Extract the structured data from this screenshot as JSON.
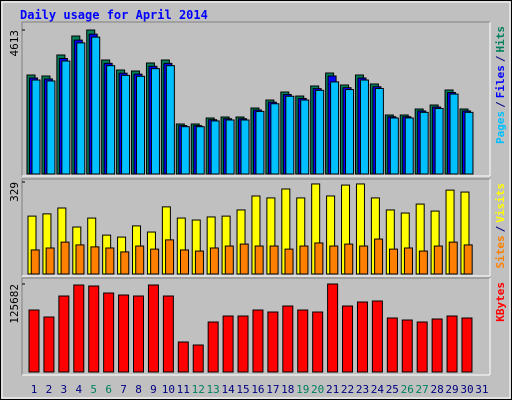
{
  "chart_data": [
    {
      "type": "bar",
      "title": "Daily usage for April 2014",
      "ylim": [
        0,
        4613
      ],
      "yticks": [
        4613
      ],
      "series": [
        {
          "name": "Hits",
          "color": "#00805c",
          "values": [
            3171,
            3139,
            3812,
            4420,
            4613,
            3652,
            3331,
            3299,
            3556,
            3652,
            1602,
            1602,
            1794,
            1826,
            1826,
            2114,
            2370,
            2626,
            2498,
            2819,
            3235,
            2851,
            3171,
            2883,
            1890,
            1890,
            2082,
            2210,
            2691,
            2082,
            null
          ]
        },
        {
          "name": "Files",
          "color": "#0000ff",
          "values": [
            3075,
            3045,
            3700,
            4290,
            4480,
            3545,
            3230,
            3200,
            3450,
            3545,
            1550,
            1550,
            1740,
            1770,
            1770,
            2050,
            2300,
            2545,
            2420,
            2735,
            3140,
            2765,
            3075,
            2795,
            1835,
            1835,
            2020,
            2145,
            2610,
            2020,
            null
          ]
        },
        {
          "name": "Pages",
          "color": "#00c0ff",
          "values": [
            3010,
            2980,
            3620,
            4200,
            4385,
            3470,
            3160,
            3130,
            3375,
            3470,
            1515,
            1515,
            1700,
            1730,
            1730,
            2005,
            2250,
            2490,
            2370,
            2680,
            2950,
            2705,
            3010,
            2740,
            1795,
            1795,
            1975,
            2100,
            2560,
            1975,
            null
          ]
        }
      ]
    },
    {
      "type": "bar",
      "ylim": [
        0,
        329
      ],
      "yticks": [
        329
      ],
      "series": [
        {
          "name": "Visits",
          "color": "#ffff00",
          "values": [
            207,
            215,
            236,
            168,
            200,
            139,
            132,
            172,
            150,
            240,
            200,
            193,
            204,
            207,
            229,
            279,
            272,
            304,
            272,
            322,
            279,
            318,
            322,
            272,
            229,
            218,
            250,
            225,
            300,
            293,
            null
          ]
        },
        {
          "name": "Sites",
          "color": "#ff8000",
          "values": [
            86,
            93,
            114,
            104,
            97,
            93,
            79,
            100,
            89,
            122,
            86,
            82,
            93,
            100,
            107,
            100,
            100,
            89,
            100,
            111,
            100,
            107,
            100,
            125,
            89,
            93,
            82,
            100,
            114,
            104,
            null
          ]
        }
      ]
    },
    {
      "type": "bar",
      "ylim": [
        0,
        125682
      ],
      "yticks": [
        125682
      ],
      "categories": [
        "1",
        "2",
        "3",
        "4",
        "5",
        "6",
        "7",
        "8",
        "9",
        "10",
        "11",
        "12",
        "13",
        "14",
        "15",
        "16",
        "17",
        "18",
        "19",
        "20",
        "21",
        "22",
        "23",
        "24",
        "25",
        "26",
        "27",
        "28",
        "29",
        "30",
        "31"
      ],
      "category_colors": [
        "#000080",
        "#000080",
        "#000080",
        "#000080",
        "#008060",
        "#008060",
        "#000080",
        "#000080",
        "#000080",
        "#000080",
        "#000080",
        "#008060",
        "#008060",
        "#000080",
        "#000080",
        "#000080",
        "#000080",
        "#000080",
        "#008060",
        "#008060",
        "#000080",
        "#000080",
        "#000080",
        "#000080",
        "#000080",
        "#008060",
        "#008060",
        "#000080",
        "#000080",
        "#000080",
        "#000080"
      ],
      "series": [
        {
          "name": "KBytes",
          "color": "#ff0000",
          "values": [
            88536,
            78540,
            108528,
            124236,
            122808,
            112812,
            109956,
            108528,
            124236,
            108528,
            42840,
            38556,
            71400,
            79968,
            79968,
            88536,
            85680,
            94248,
            88536,
            85680,
            125682,
            94248,
            99960,
            101388,
            77112,
            74256,
            71400,
            75684,
            79968,
            77112,
            null
          ]
        }
      ]
    }
  ],
  "legend_separator": "/"
}
